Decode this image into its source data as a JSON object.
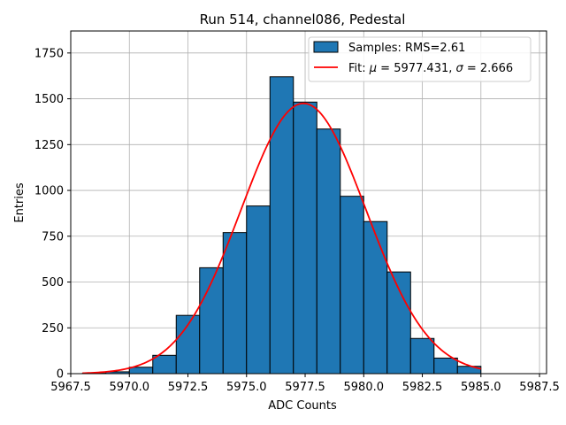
{
  "chart_data": {
    "type": "bar",
    "title": "Run 514, channel086, Pedestal",
    "xlabel": "ADC Counts",
    "ylabel": "Entries",
    "xlim": [
      5967.5,
      5987.8
    ],
    "ylim": [
      0,
      1870
    ],
    "xticks": [
      5967.5,
      5970.0,
      5972.5,
      5975.0,
      5977.5,
      5980.0,
      5982.5,
      5985.0,
      5987.5
    ],
    "xtick_labels": [
      "5967.5",
      "5970.0",
      "5972.5",
      "5975.0",
      "5977.5",
      "5980.0",
      "5982.5",
      "5985.0",
      "5987.5"
    ],
    "yticks": [
      0,
      250,
      500,
      750,
      1000,
      1250,
      1500,
      1750
    ],
    "ytick_labels": [
      "0",
      "250",
      "500",
      "750",
      "1000",
      "1250",
      "1500",
      "1750"
    ],
    "grid": true,
    "legend_position": "top-right",
    "histogram": {
      "name": "Samples: RMS=2.61",
      "color": "#1f77b4",
      "edge_color": "#000000",
      "bin_edges": [
        5968,
        5969,
        5970,
        5971,
        5972,
        5973,
        5974,
        5975,
        5976,
        5977,
        5978,
        5979,
        5980,
        5981,
        5982,
        5983,
        5984,
        5985
      ],
      "counts": [
        2,
        10,
        35,
        100,
        318,
        578,
        770,
        915,
        1620,
        1482,
        1335,
        968,
        830,
        555,
        192,
        85,
        40
      ]
    },
    "fit": {
      "name": "Fit: μ = 5977.431, σ = 2.666",
      "legend_prefix": "Fit: ",
      "mu_symbol": "μ",
      "mu_text": " = 5977.431, ",
      "sigma_symbol": "σ",
      "sigma_text": " = 2.666",
      "color": "#ff0000",
      "mu": 5977.431,
      "sigma": 2.666,
      "amplitude": 1475,
      "x_range": [
        5968,
        5985
      ]
    }
  }
}
